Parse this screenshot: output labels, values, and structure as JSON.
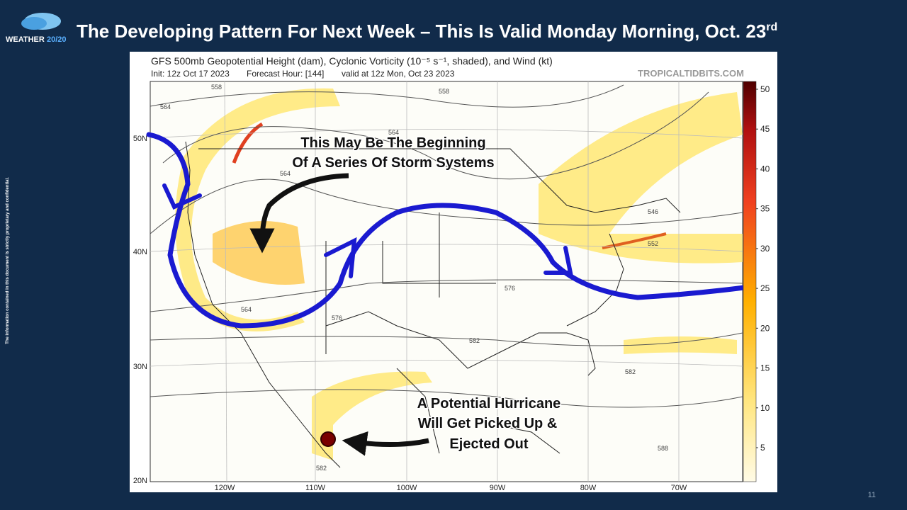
{
  "slide": {
    "logo_brand": "WEATHER",
    "logo_number": "20/20",
    "title": "The Developing Pattern For Next Week – This Is Valid Monday Morning, Oct. 23",
    "title_superscript": "rd",
    "side_note": "The information contained in this document is strictly proprietary and confidential.",
    "page_number": "11"
  },
  "map": {
    "title": "GFS 500mb Geopotential Height (dam), Cyclonic Vorticity (10⁻⁵ s⁻¹, shaded), and Wind (kt)",
    "init": "Init: 12z Oct 17 2023",
    "forecast_hour": "Forecast Hour: [144]",
    "valid": "valid at 12z Mon, Oct 23 2023",
    "source": "TROPICALTIDBITS.COM",
    "lat_labels": [
      "50N",
      "40N",
      "30N",
      "20N"
    ],
    "lon_labels": [
      "120W",
      "110W",
      "100W",
      "90W",
      "80W",
      "70W"
    ],
    "contour_labels": [
      "558",
      "558",
      "564",
      "564",
      "564",
      "546",
      "552",
      "576",
      "576",
      "582",
      "582",
      "588",
      "582",
      "564"
    ],
    "colorbar_ticks": [
      50,
      45,
      40,
      35,
      30,
      25,
      20,
      15,
      10,
      5
    ]
  },
  "annotations": [
    {
      "lines": [
        "This May Be The Beginning",
        "Of A Series Of Storm Systems"
      ]
    },
    {
      "lines": [
        "A Potential Hurricane",
        "Will Get Picked Up &",
        "Ejected Out"
      ]
    }
  ]
}
